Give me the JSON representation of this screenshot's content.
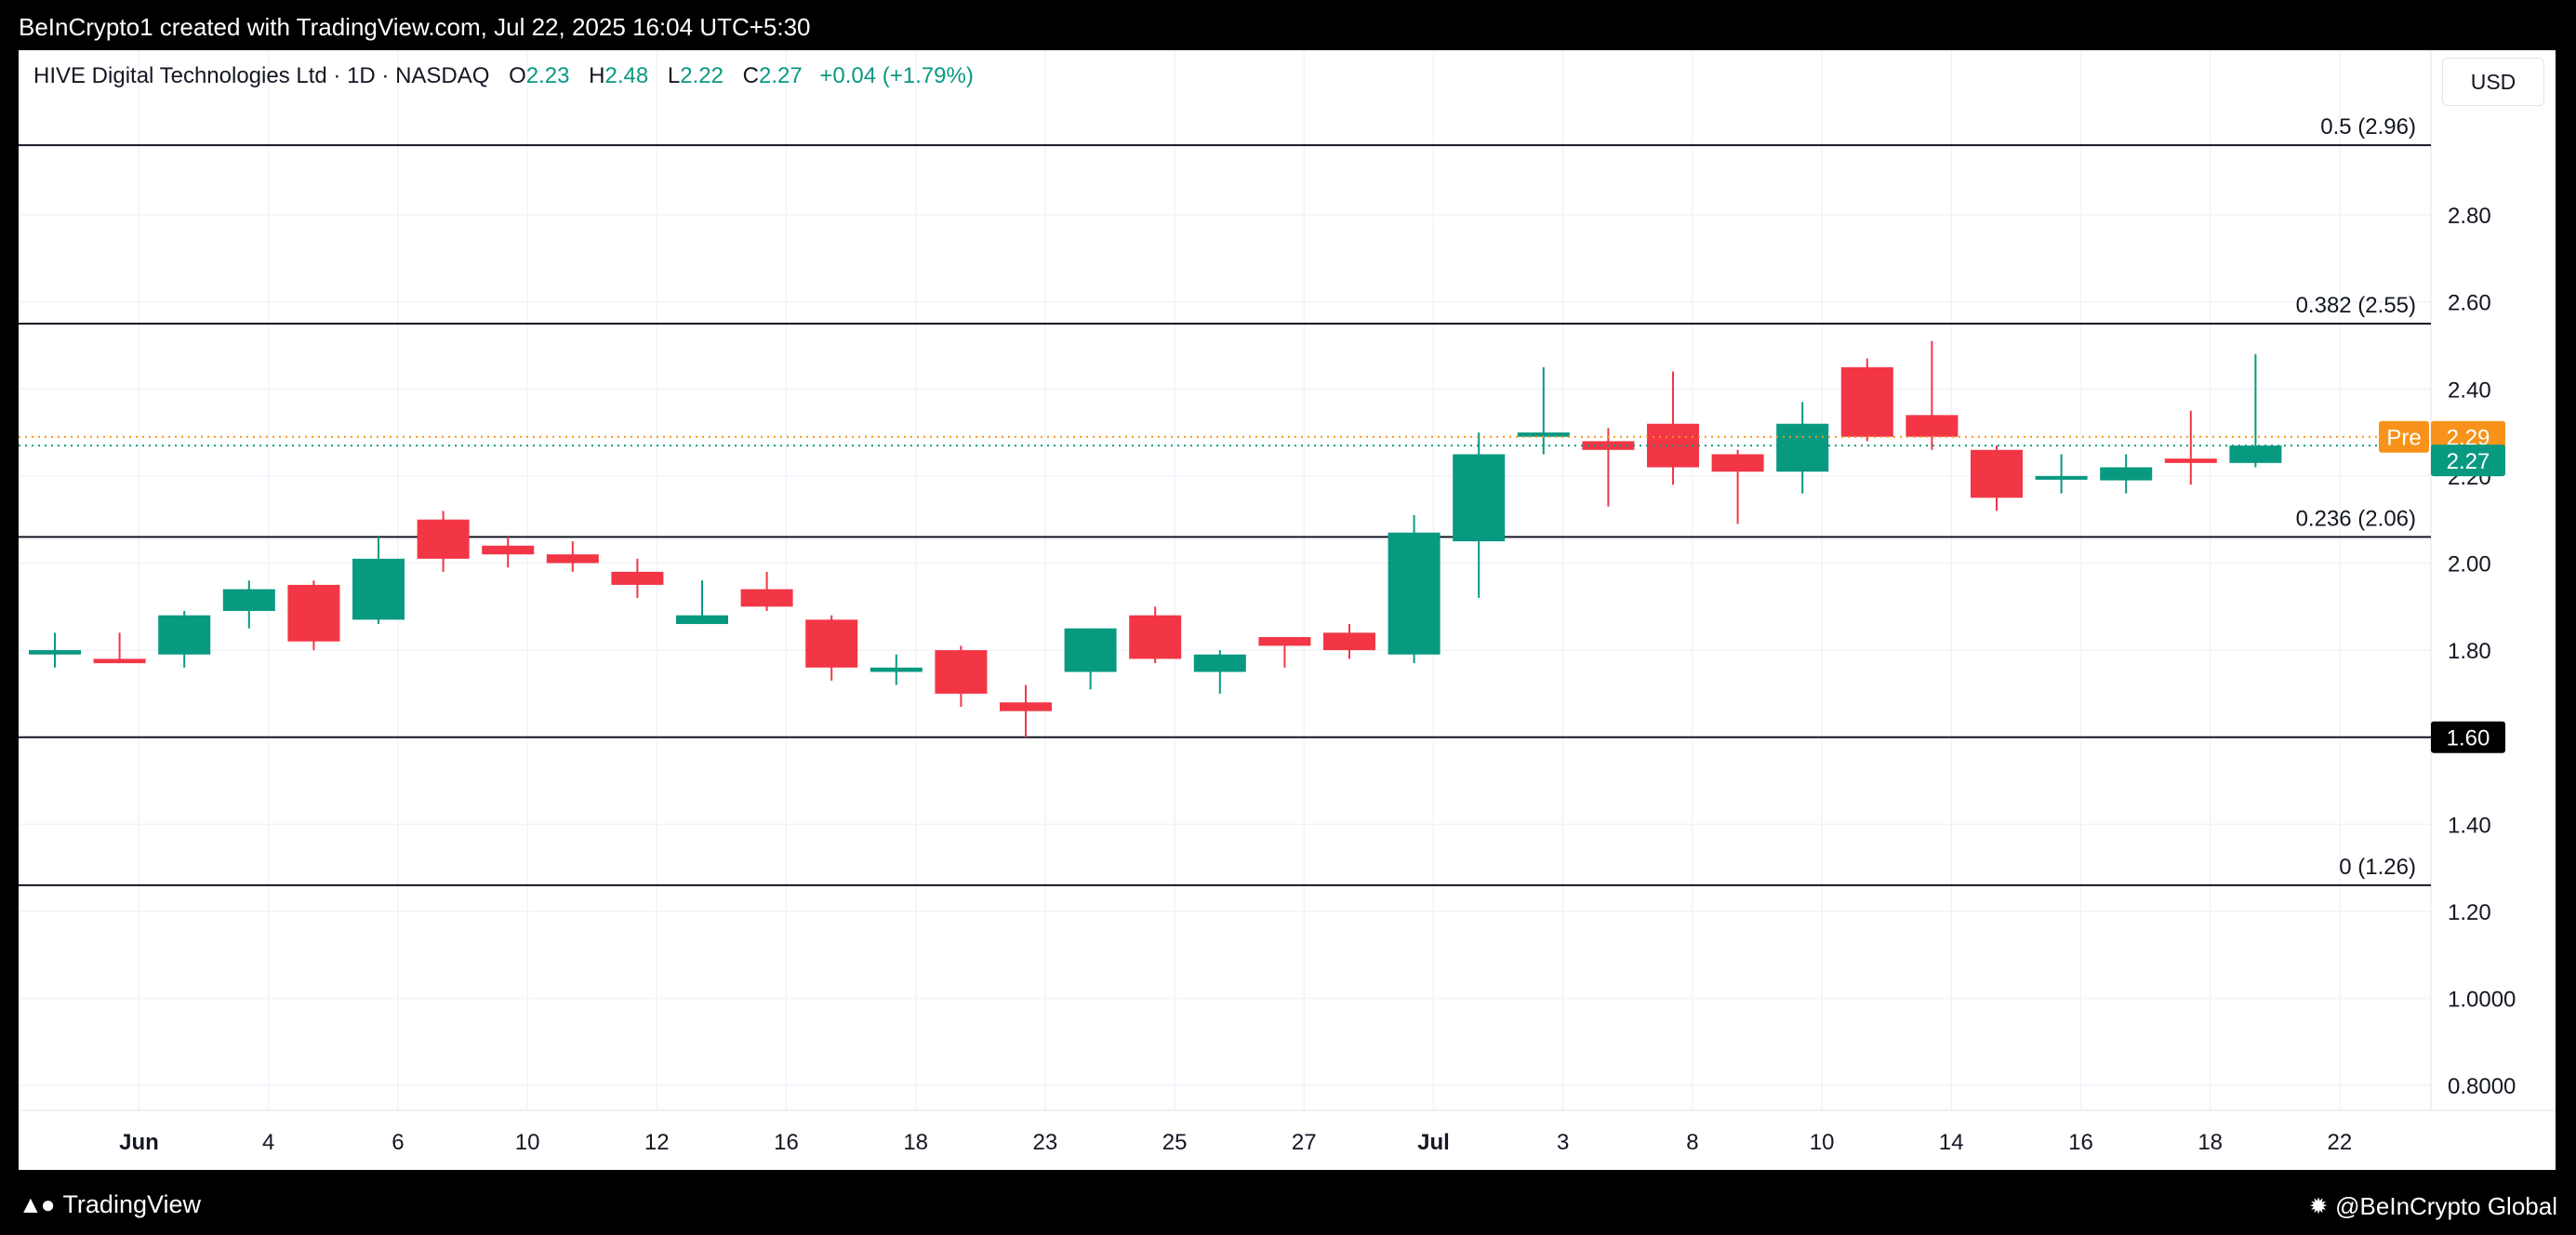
{
  "header": {
    "attribution": "BeInCrypto1 created with TradingView.com, Jul 22, 2025 16:04 UTC+5:30"
  },
  "legend": {
    "symbol": "HIVE Digital Technologies Ltd · 1D · NASDAQ",
    "o_label": "O",
    "o_value": "2.23",
    "h_label": "H",
    "h_value": "2.48",
    "l_label": "L",
    "l_value": "2.22",
    "c_label": "C",
    "c_value": "2.27",
    "change": "+0.04 (+1.79%)"
  },
  "currency_button": "USD",
  "footer": {
    "brand": "TradingView",
    "watermark": "@BeInCrypto Global"
  },
  "colors": {
    "up": "#089981",
    "down": "#f23645",
    "pre": "#f7931a",
    "level": "#131722"
  },
  "icons": [
    "tradingview-logo-icon",
    "beincrypto-gear-icon"
  ],
  "chart_data": {
    "type": "candlestick",
    "ylim": [
      0.7,
      3.05
    ],
    "yticks": [
      {
        "v": 2.8,
        "label": "2.80"
      },
      {
        "v": 2.6,
        "label": "2.60"
      },
      {
        "v": 2.4,
        "label": "2.40"
      },
      {
        "v": 2.2,
        "label": "2.20"
      },
      {
        "v": 2.0,
        "label": "2.00"
      },
      {
        "v": 1.8,
        "label": "1.80"
      },
      {
        "v": 1.4,
        "label": "1.40"
      },
      {
        "v": 1.2,
        "label": "1.20"
      },
      {
        "v": 1.0,
        "label": "1.0000"
      },
      {
        "v": 0.8,
        "label": "0.8000"
      }
    ],
    "xticks": [
      {
        "i": 1.3,
        "label": "Jun",
        "bold": true
      },
      {
        "i": 3.3,
        "label": "4"
      },
      {
        "i": 5.3,
        "label": "6"
      },
      {
        "i": 7.3,
        "label": "10"
      },
      {
        "i": 9.3,
        "label": "12"
      },
      {
        "i": 11.3,
        "label": "16"
      },
      {
        "i": 13.3,
        "label": "18"
      },
      {
        "i": 15.3,
        "label": "23"
      },
      {
        "i": 17.3,
        "label": "25"
      },
      {
        "i": 19.3,
        "label": "27"
      },
      {
        "i": 21.3,
        "label": "Jul",
        "bold": true
      },
      {
        "i": 23.3,
        "label": "3"
      },
      {
        "i": 25.3,
        "label": "8"
      },
      {
        "i": 27.3,
        "label": "10"
      },
      {
        "i": 29.3,
        "label": "14"
      },
      {
        "i": 31.3,
        "label": "16"
      },
      {
        "i": 33.3,
        "label": "18"
      },
      {
        "i": 35.3,
        "label": "22"
      }
    ],
    "candles": [
      {
        "o": 1.79,
        "h": 1.84,
        "l": 1.76,
        "c": 1.8
      },
      {
        "o": 1.78,
        "h": 1.84,
        "l": 1.77,
        "c": 1.77
      },
      {
        "o": 1.79,
        "h": 1.89,
        "l": 1.76,
        "c": 1.88
      },
      {
        "o": 1.89,
        "h": 1.96,
        "l": 1.85,
        "c": 1.94
      },
      {
        "o": 1.95,
        "h": 1.96,
        "l": 1.8,
        "c": 1.82
      },
      {
        "o": 1.87,
        "h": 2.06,
        "l": 1.86,
        "c": 2.01
      },
      {
        "o": 2.1,
        "h": 2.12,
        "l": 1.98,
        "c": 2.01
      },
      {
        "o": 2.04,
        "h": 2.06,
        "l": 1.99,
        "c": 2.02
      },
      {
        "o": 2.02,
        "h": 2.05,
        "l": 1.98,
        "c": 2.0
      },
      {
        "o": 1.98,
        "h": 2.01,
        "l": 1.92,
        "c": 1.95
      },
      {
        "o": 1.86,
        "h": 1.96,
        "l": 1.86,
        "c": 1.88
      },
      {
        "o": 1.94,
        "h": 1.98,
        "l": 1.89,
        "c": 1.9
      },
      {
        "o": 1.87,
        "h": 1.88,
        "l": 1.73,
        "c": 1.76
      },
      {
        "o": 1.75,
        "h": 1.79,
        "l": 1.72,
        "c": 1.76
      },
      {
        "o": 1.8,
        "h": 1.81,
        "l": 1.67,
        "c": 1.7
      },
      {
        "o": 1.68,
        "h": 1.72,
        "l": 1.6,
        "c": 1.66
      },
      {
        "o": 1.75,
        "h": 1.85,
        "l": 1.71,
        "c": 1.85
      },
      {
        "o": 1.88,
        "h": 1.9,
        "l": 1.77,
        "c": 1.78
      },
      {
        "o": 1.75,
        "h": 1.8,
        "l": 1.7,
        "c": 1.79
      },
      {
        "o": 1.83,
        "h": 1.83,
        "l": 1.76,
        "c": 1.81
      },
      {
        "o": 1.84,
        "h": 1.86,
        "l": 1.78,
        "c": 1.8
      },
      {
        "o": 1.79,
        "h": 2.11,
        "l": 1.77,
        "c": 2.07
      },
      {
        "o": 2.05,
        "h": 2.3,
        "l": 1.92,
        "c": 2.25
      },
      {
        "o": 2.29,
        "h": 2.45,
        "l": 2.25,
        "c": 2.3
      },
      {
        "o": 2.28,
        "h": 2.31,
        "l": 2.13,
        "c": 2.26
      },
      {
        "o": 2.32,
        "h": 2.44,
        "l": 2.18,
        "c": 2.22
      },
      {
        "o": 2.25,
        "h": 2.26,
        "l": 2.09,
        "c": 2.21
      },
      {
        "o": 2.21,
        "h": 2.37,
        "l": 2.16,
        "c": 2.32
      },
      {
        "o": 2.45,
        "h": 2.47,
        "l": 2.28,
        "c": 2.29
      },
      {
        "o": 2.34,
        "h": 2.51,
        "l": 2.26,
        "c": 2.29
      },
      {
        "o": 2.26,
        "h": 2.27,
        "l": 2.12,
        "c": 2.15
      },
      {
        "o": 2.2,
        "h": 2.25,
        "l": 2.16,
        "c": 2.2
      },
      {
        "o": 2.19,
        "h": 2.25,
        "l": 2.16,
        "c": 2.22
      },
      {
        "o": 2.24,
        "h": 2.35,
        "l": 2.18,
        "c": 2.23
      },
      {
        "o": 2.23,
        "h": 2.48,
        "l": 2.22,
        "c": 2.27
      }
    ],
    "levels": [
      {
        "v": 2.96,
        "label": "0.5 (2.96)"
      },
      {
        "v": 2.55,
        "label": "0.382 (2.55)"
      },
      {
        "v": 2.06,
        "label": "0.236 (2.06)"
      },
      {
        "v": 1.26,
        "label": "0 (1.26)"
      },
      {
        "v": 1.6,
        "label": "",
        "badge": "1.60"
      }
    ],
    "markers": {
      "pre": {
        "v": 2.29,
        "tag": "Pre",
        "label": "2.29"
      },
      "last": {
        "v": 2.27,
        "label": "2.27"
      }
    }
  }
}
